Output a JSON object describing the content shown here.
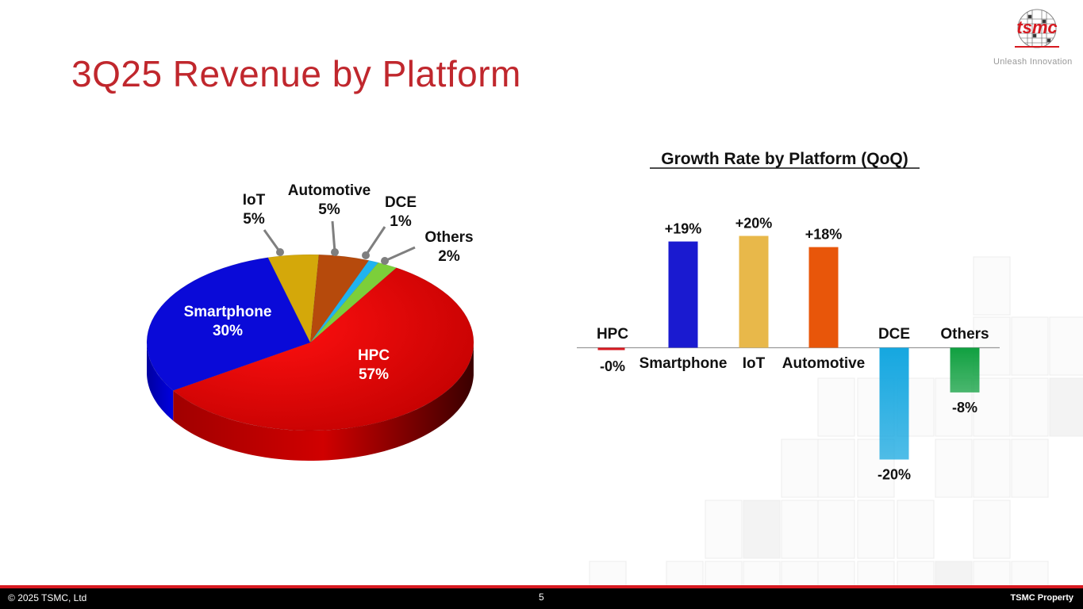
{
  "title": "3Q25 Revenue by Platform",
  "logo": {
    "text": "tsmc",
    "tagline": "Unleash Innovation"
  },
  "footer": {
    "copyright": "2025 TSMC, Ltd",
    "page": "5",
    "property": "TSMC Property"
  },
  "colors": {
    "brand_red": "#c0272d",
    "footer_bg": "#000000",
    "footer_line": "#d71920"
  },
  "chart_data": [
    {
      "type": "pie",
      "title": "",
      "slices": [
        {
          "label": "HPC",
          "value": 57,
          "display": "57%",
          "color": "#e50000"
        },
        {
          "label": "Smartphone",
          "value": 30,
          "display": "30%",
          "color": "#0a0ad8"
        },
        {
          "label": "IoT",
          "value": 5,
          "display": "5%",
          "color": "#d4a80a"
        },
        {
          "label": "Automotive",
          "value": 5,
          "display": "5%",
          "color": "#b64a0c"
        },
        {
          "label": "DCE",
          "value": 1,
          "display": "1%",
          "color": "#1fb3f0"
        },
        {
          "label": "Others",
          "value": 2,
          "display": "2%",
          "color": "#7ccf3a"
        }
      ]
    },
    {
      "type": "bar",
      "title": "Growth Rate by Platform (QoQ)",
      "categories": [
        "HPC",
        "Smartphone",
        "IoT",
        "Automotive",
        "DCE",
        "Others"
      ],
      "values": [
        -0.3,
        19,
        20,
        18,
        -20,
        -8
      ],
      "value_labels": [
        "-0%",
        "+19%",
        "+20%",
        "+18%",
        "-20%",
        "-8%"
      ],
      "colors": [
        "#d71920",
        "#1a1ad0",
        "#e8b84a",
        "#e8560a",
        "#15a7e0",
        "#10a040"
      ],
      "ylim": [
        -20,
        20
      ],
      "grid": false
    }
  ]
}
